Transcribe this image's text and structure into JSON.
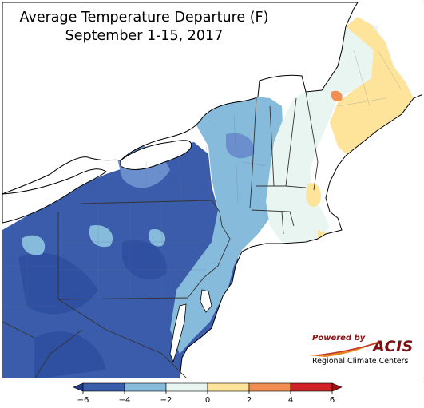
{
  "title": {
    "line1": "Average Temperature Departure (F)",
    "line2": "September 1-15, 2017"
  },
  "logo": {
    "powered_by": "Powered by",
    "name": "ACIS",
    "subtitle": "Regional Climate Centers"
  },
  "legend": {
    "ticks": [
      "−6",
      "−4",
      "−2",
      "0",
      "2",
      "4",
      "6"
    ],
    "colors": [
      "#3b5cab",
      "#87bbdc",
      "#e8f5f0",
      "#fde49a",
      "#f28e52",
      "#cf2226"
    ]
  },
  "palette": {
    "deep_blue": "#3b5cab",
    "mid_blue": "#6b8fcc",
    "light_blue": "#87bbdc",
    "pale": "#e8f5f0",
    "yellow": "#fde49a",
    "orange": "#f28e52",
    "water": "#ffffff"
  }
}
